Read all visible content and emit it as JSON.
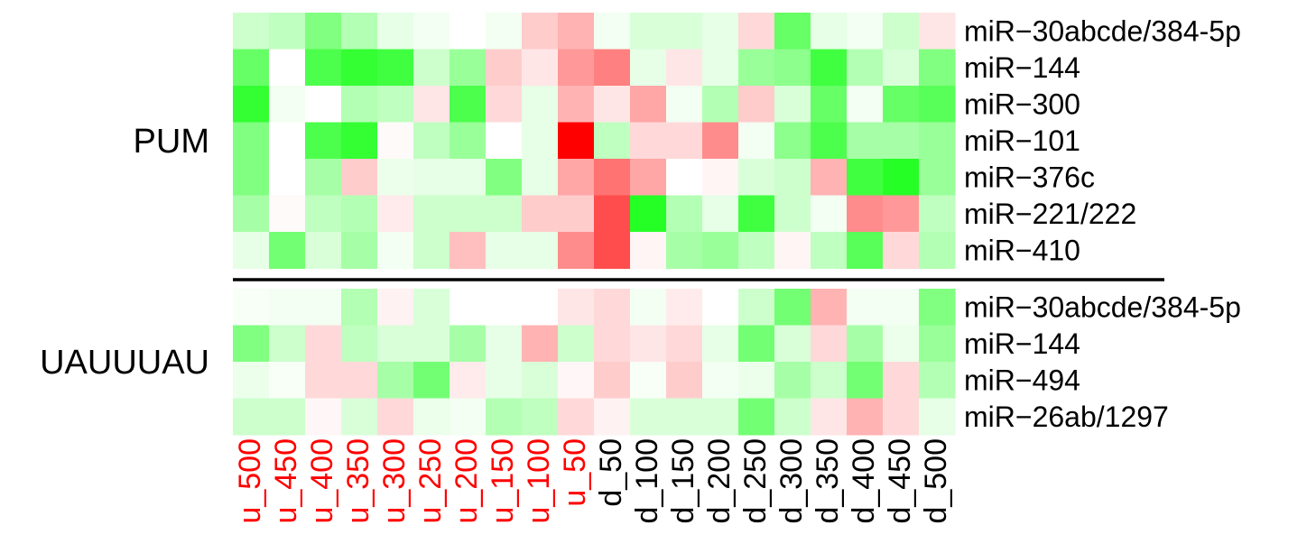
{
  "chart_data": {
    "type": "heatmap",
    "title": "",
    "xlabel": "",
    "ylabel": "",
    "colorscale": {
      "negative": "#00ff00",
      "zero": "#ffffff",
      "positive": "#ff0000"
    },
    "value_range": [
      -1,
      1
    ],
    "columns": [
      "u_500",
      "u_450",
      "u_400",
      "u_350",
      "u_300",
      "u_250",
      "u_200",
      "u_150",
      "u_100",
      "u_50",
      "d_50",
      "d_100",
      "d_150",
      "d_200",
      "d_250",
      "d_300",
      "d_350",
      "d_400",
      "d_450",
      "d_500"
    ],
    "column_colors": [
      "#ff0000",
      "#ff0000",
      "#ff0000",
      "#ff0000",
      "#ff0000",
      "#ff0000",
      "#ff0000",
      "#ff0000",
      "#ff0000",
      "#ff0000",
      "#000000",
      "#000000",
      "#000000",
      "#000000",
      "#000000",
      "#000000",
      "#000000",
      "#000000",
      "#000000",
      "#000000"
    ],
    "groups": [
      {
        "name": "PUM",
        "rows": [
          {
            "label": "miR−30abcde/384-5p",
            "values": [
              -0.2,
              -0.25,
              -0.5,
              -0.3,
              -0.1,
              -0.05,
              0.0,
              -0.05,
              0.2,
              0.3,
              -0.05,
              -0.15,
              -0.15,
              -0.1,
              0.15,
              -0.6,
              -0.1,
              -0.05,
              -0.2,
              0.1
            ]
          },
          {
            "label": "miR−144",
            "values": [
              -0.6,
              0.0,
              -0.7,
              -0.8,
              -0.75,
              -0.2,
              -0.4,
              0.2,
              0.1,
              0.4,
              0.5,
              -0.1,
              0.1,
              -0.1,
              -0.4,
              -0.45,
              -0.75,
              -0.3,
              -0.15,
              -0.5
            ]
          },
          {
            "label": "miR−300",
            "values": [
              -0.8,
              -0.05,
              0.0,
              -0.3,
              -0.25,
              0.1,
              -0.7,
              0.15,
              -0.1,
              0.3,
              0.1,
              0.35,
              -0.05,
              -0.3,
              0.2,
              -0.15,
              -0.6,
              -0.05,
              -0.6,
              -0.65
            ]
          },
          {
            "label": "miR−101",
            "values": [
              -0.5,
              0.0,
              -0.7,
              -0.8,
              0.02,
              -0.25,
              -0.4,
              0.0,
              -0.1,
              1.0,
              -0.25,
              0.15,
              0.15,
              0.45,
              -0.05,
              -0.45,
              -0.7,
              -0.35,
              -0.35,
              -0.4
            ]
          },
          {
            "label": "miR−376c",
            "values": [
              -0.5,
              0.0,
              -0.35,
              0.2,
              -0.08,
              -0.1,
              -0.1,
              -0.5,
              -0.1,
              0.35,
              0.55,
              0.35,
              0.0,
              0.04,
              -0.15,
              -0.2,
              0.3,
              -0.75,
              -0.85,
              -0.4
            ]
          },
          {
            "label": "miR−221/222",
            "values": [
              -0.35,
              0.02,
              -0.25,
              -0.3,
              0.08,
              -0.2,
              -0.2,
              -0.2,
              0.2,
              0.2,
              0.7,
              -0.85,
              -0.3,
              -0.1,
              -0.75,
              -0.2,
              -0.05,
              0.45,
              0.4,
              -0.25
            ]
          },
          {
            "label": "miR−410",
            "values": [
              -0.1,
              -0.55,
              -0.15,
              -0.35,
              -0.05,
              -0.2,
              0.25,
              -0.1,
              -0.1,
              0.45,
              0.7,
              0.04,
              -0.35,
              -0.4,
              -0.25,
              0.04,
              -0.25,
              -0.65,
              0.15,
              -0.3
            ]
          }
        ]
      },
      {
        "name": "UAUUUAU",
        "rows": [
          {
            "label": "miR−30abcde/384-5p",
            "values": [
              -0.03,
              -0.05,
              -0.05,
              -0.3,
              0.05,
              -0.15,
              0.0,
              0.0,
              0.0,
              0.1,
              0.15,
              -0.05,
              0.08,
              0.0,
              -0.2,
              -0.55,
              0.3,
              -0.05,
              -0.05,
              -0.5
            ]
          },
          {
            "label": "miR−144",
            "values": [
              -0.5,
              -0.2,
              0.15,
              -0.25,
              -0.15,
              -0.15,
              -0.35,
              -0.1,
              0.3,
              -0.2,
              0.15,
              0.1,
              0.15,
              -0.1,
              -0.55,
              -0.15,
              0.15,
              -0.35,
              -0.08,
              -0.4
            ]
          },
          {
            "label": "miR−494",
            "values": [
              -0.08,
              -0.03,
              0.15,
              0.15,
              -0.35,
              -0.55,
              0.08,
              -0.1,
              -0.15,
              0.03,
              0.2,
              -0.03,
              0.2,
              -0.05,
              -0.08,
              -0.35,
              -0.2,
              -0.55,
              0.15,
              -0.3
            ]
          },
          {
            "label": "miR−26ab/1297",
            "values": [
              -0.2,
              -0.2,
              0.03,
              -0.15,
              0.15,
              -0.08,
              -0.05,
              -0.3,
              -0.25,
              0.15,
              0.05,
              -0.15,
              -0.15,
              -0.15,
              -0.55,
              -0.2,
              0.1,
              0.3,
              0.15,
              -0.1
            ]
          }
        ]
      }
    ]
  }
}
